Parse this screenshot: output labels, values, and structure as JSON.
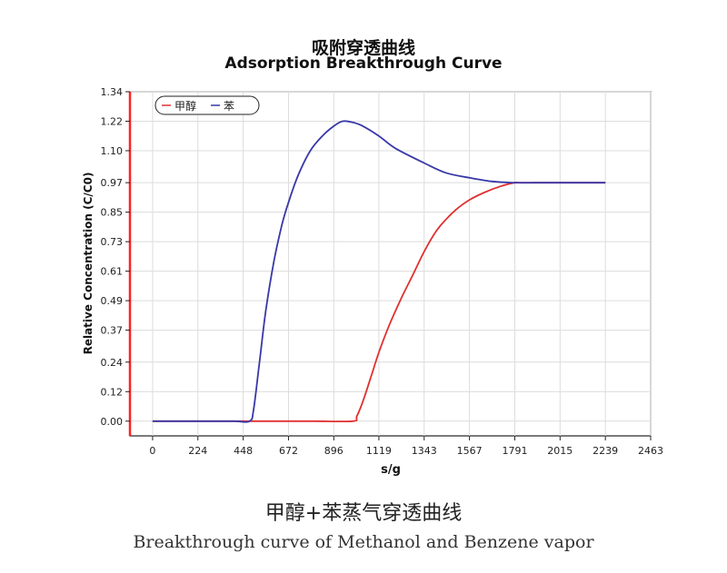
{
  "caption": {
    "cn": "甲醇+苯蒸气穿透曲线",
    "en": "Breakthrough curve of Methanol and Benzene vapor"
  },
  "chart_data": {
    "type": "line",
    "title": "吸附穿透曲线",
    "subtitle": "Adsorption Breakthrough Curve",
    "xlabel": "s/g",
    "ylabel": "Relative Concentration (C/C0)",
    "xlim": [
      -112,
      2463
    ],
    "ylim": [
      -0.06,
      1.34
    ],
    "x_ticks": [
      0,
      224,
      448,
      672,
      896,
      1119,
      1343,
      1567,
      1791,
      2015,
      2239,
      2463
    ],
    "x_tick_labels": [
      "0",
      "224",
      "448",
      "672",
      "896",
      "1119",
      "1343",
      "1567",
      "1791",
      "2015",
      "2239",
      "2463"
    ],
    "y_ticks": [
      0.0,
      0.12,
      0.24,
      0.37,
      0.49,
      0.61,
      0.73,
      0.85,
      0.97,
      1.1,
      1.22,
      1.34
    ],
    "y_tick_labels": [
      "0.00",
      "0.12",
      "0.24",
      "0.37",
      "0.49",
      "0.61",
      "0.73",
      "0.85",
      "0.97",
      "1.10",
      "1.22",
      "1.34"
    ],
    "grid": true,
    "legend_position": "top-left",
    "series": [
      {
        "name": "甲醇",
        "color": "#e03030",
        "x": [
          0,
          200,
          400,
          600,
          800,
          990,
          1010,
          1040,
          1080,
          1119,
          1170,
          1230,
          1290,
          1343,
          1400,
          1450,
          1500,
          1567,
          1640,
          1720,
          1791,
          1820,
          2000,
          2239
        ],
        "y": [
          0,
          0,
          0,
          0,
          0,
          0,
          0.02,
          0.08,
          0.18,
          0.28,
          0.39,
          0.5,
          0.6,
          0.69,
          0.77,
          0.82,
          0.86,
          0.9,
          0.93,
          0.955,
          0.97,
          0.97,
          0.97,
          0.97
        ]
      },
      {
        "name": "苯",
        "color": "#3838a8",
        "x": [
          0,
          200,
          400,
          480,
          500,
          530,
          560,
          600,
          640,
          672,
          720,
          780,
          840,
          896,
          940,
          990,
          1040,
          1119,
          1200,
          1343,
          1450,
          1567,
          1680,
          1791,
          1900,
          2100,
          2239
        ],
        "y": [
          0,
          0,
          0,
          0,
          0.05,
          0.25,
          0.45,
          0.65,
          0.8,
          0.89,
          1.0,
          1.1,
          1.16,
          1.2,
          1.22,
          1.215,
          1.2,
          1.16,
          1.11,
          1.05,
          1.01,
          0.99,
          0.975,
          0.97,
          0.97,
          0.97,
          0.97
        ]
      }
    ]
  }
}
